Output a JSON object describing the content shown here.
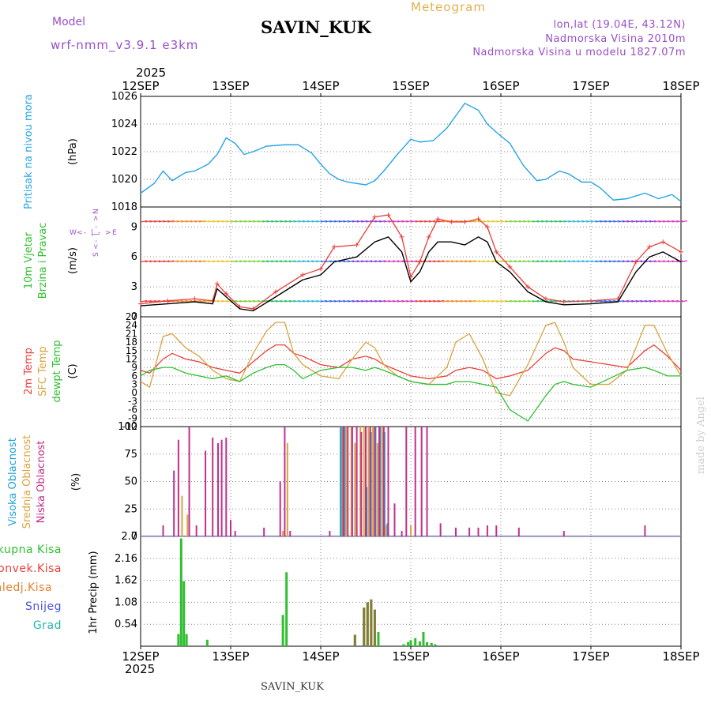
{
  "header": {
    "title": "SAVIN_KUK",
    "model_label": "Model",
    "model_name": "wrf-nmm_v3.9.1  e3km",
    "meteogram_label": "Meteogram",
    "location_lonlat": "lon,lat (19.04E, 43.12N)",
    "altitude": "Nadmorska Visina 2010m",
    "altitude_model": "Nadmorska Visina u modelu 1827.07m",
    "year": "2025",
    "footer_name": "SAVIN_KUK",
    "made_by": "made by Angel"
  },
  "colors": {
    "pressure": "#27a5e3",
    "wind_speed": "#000000",
    "wind_gust": "#e8403a",
    "temp_2m": "#e8403a",
    "temp_sfc": "#d9a441",
    "dewpoint": "#2fbf2f",
    "cloud_high": "#1ea0d8",
    "cloud_mid": "#d9a441",
    "cloud_low": "#c0308a",
    "precip_total": "#2fbf2f",
    "precip_grad": "#20b8a8",
    "precip_conv": "#e8403a",
    "precip_zaledj": "#e87f2a",
    "precip_snow": "#4b55d8",
    "label_pressure": "#27a5e3",
    "label_wind": "#2fbf2f"
  },
  "chart_data": [
    {
      "type": "line",
      "title": "Pritisak na nivou mora",
      "ylabel": "(hPa)",
      "ylim": [
        1018,
        1026
      ],
      "yticks": [
        "1018",
        "1020",
        "1022",
        "1024",
        "1026"
      ],
      "x_labels": [
        "12SEP",
        "13SEP",
        "14SEP",
        "15SEP",
        "16SEP",
        "17SEP",
        "18SEP"
      ],
      "xlim_days": [
        0,
        6
      ],
      "series": [
        {
          "name": "pressure",
          "x": [
            0,
            0.15,
            0.25,
            0.35,
            0.5,
            0.6,
            0.75,
            0.85,
            0.95,
            1.0,
            1.05,
            1.15,
            1.25,
            1.4,
            1.6,
            1.75,
            1.9,
            2.0,
            2.1,
            2.2,
            2.3,
            2.4,
            2.5,
            2.6,
            2.7,
            2.85,
            3.0,
            3.1,
            3.25,
            3.4,
            3.6,
            3.75,
            3.85,
            3.95,
            4.1,
            4.25,
            4.4,
            4.5,
            4.65,
            4.75,
            4.9,
            5.0,
            5.1,
            5.25,
            5.4,
            5.6,
            5.75,
            5.9,
            6.0
          ],
          "values": [
            1019.0,
            1019.7,
            1020.6,
            1019.9,
            1020.5,
            1020.6,
            1021.1,
            1021.8,
            1023.0,
            1022.8,
            1022.6,
            1021.8,
            1022.0,
            1022.4,
            1022.5,
            1022.5,
            1021.9,
            1021.1,
            1020.4,
            1020.0,
            1019.8,
            1019.7,
            1019.6,
            1019.9,
            1020.6,
            1021.8,
            1022.9,
            1022.7,
            1022.8,
            1023.7,
            1025.5,
            1025.0,
            1024.0,
            1023.4,
            1022.6,
            1021.0,
            1019.9,
            1020.0,
            1020.6,
            1020.4,
            1019.8,
            1019.8,
            1019.4,
            1018.5,
            1018.6,
            1019.0,
            1018.6,
            1018.9,
            1018.4
          ]
        }
      ]
    },
    {
      "type": "line",
      "title": "10m Vjetar Brzina i Pravac",
      "ylabel": "(m/s)",
      "ylim": [
        0,
        11
      ],
      "yticks": [
        "0",
        "3",
        "6",
        "9"
      ],
      "compass": [
        "W",
        "<",
        "-",
        "|",
        "-",
        ">",
        "E",
        "S",
        "<",
        "-",
        "|",
        "-",
        ">",
        "N"
      ],
      "series": [
        {
          "name": "wind_speed",
          "x": [
            0,
            0.3,
            0.6,
            0.8,
            0.85,
            0.95,
            1.1,
            1.25,
            1.5,
            1.8,
            2.0,
            2.15,
            2.4,
            2.6,
            2.75,
            2.9,
            3.0,
            3.1,
            3.2,
            3.3,
            3.45,
            3.6,
            3.75,
            3.85,
            3.95,
            4.1,
            4.3,
            4.5,
            4.7,
            5.0,
            5.3,
            5.5,
            5.65,
            5.8,
            6.0
          ],
          "values": [
            1.1,
            1.3,
            1.5,
            1.3,
            2.8,
            2.0,
            0.8,
            0.6,
            2.0,
            3.7,
            4.2,
            5.5,
            6.0,
            7.5,
            8.0,
            6.5,
            3.5,
            4.5,
            6.5,
            7.5,
            7.5,
            7.2,
            8.0,
            7.5,
            5.5,
            4.5,
            2.5,
            1.5,
            1.2,
            1.3,
            1.5,
            4.5,
            6.0,
            6.5,
            5.5
          ]
        },
        {
          "name": "wind_gust",
          "x": [
            0,
            0.3,
            0.6,
            0.8,
            0.85,
            0.95,
            1.1,
            1.25,
            1.5,
            1.8,
            2.0,
            2.15,
            2.4,
            2.6,
            2.75,
            2.9,
            3.0,
            3.1,
            3.2,
            3.3,
            3.45,
            3.6,
            3.75,
            3.85,
            3.95,
            4.1,
            4.3,
            4.5,
            4.7,
            5.0,
            5.3,
            5.5,
            5.65,
            5.8,
            6.0
          ],
          "values": [
            1.3,
            1.6,
            1.8,
            1.6,
            3.3,
            2.3,
            1.0,
            0.8,
            2.5,
            4.2,
            4.8,
            7.0,
            7.2,
            10.0,
            10.2,
            8.0,
            4.0,
            5.5,
            8.0,
            9.8,
            9.5,
            9.5,
            9.8,
            9.0,
            6.5,
            5.0,
            3.0,
            1.8,
            1.5,
            1.6,
            1.8,
            5.5,
            7.0,
            7.5,
            6.5
          ]
        }
      ]
    },
    {
      "type": "line",
      "title": "2m Temp / SFC Temp / dewpt Temp",
      "ylabel": "(C)",
      "ylim": [
        -12,
        27
      ],
      "yticks": [
        "-12",
        "-9",
        "-6",
        "-3",
        "0",
        "3",
        "6",
        "9",
        "12",
        "15",
        "18",
        "21",
        "24",
        "27"
      ],
      "series": [
        {
          "name": "2m Temp",
          "x": [
            0,
            0.1,
            0.25,
            0.35,
            0.5,
            0.65,
            0.8,
            0.95,
            1.1,
            1.25,
            1.4,
            1.5,
            1.6,
            1.7,
            1.8,
            2.0,
            2.2,
            2.35,
            2.5,
            2.6,
            2.7,
            2.85,
            3.0,
            3.2,
            3.4,
            3.5,
            3.65,
            3.8,
            3.95,
            4.1,
            4.3,
            4.5,
            4.6,
            4.7,
            4.8,
            5.0,
            5.2,
            5.4,
            5.6,
            5.7,
            5.85,
            6.0
          ],
          "values": [
            8,
            7,
            12,
            14,
            12,
            11,
            9,
            8,
            7,
            11,
            15,
            17,
            17,
            14,
            13,
            10,
            9,
            12,
            13,
            12,
            10,
            8,
            6,
            5,
            6,
            8,
            9,
            8,
            5,
            6,
            8,
            14,
            16,
            15,
            12,
            11,
            10,
            9,
            15,
            17,
            13,
            8
          ]
        },
        {
          "name": "SFC Temp",
          "x": [
            0,
            0.1,
            0.25,
            0.35,
            0.5,
            0.65,
            0.8,
            0.95,
            1.1,
            1.25,
            1.4,
            1.5,
            1.6,
            1.7,
            1.8,
            2.0,
            2.2,
            2.35,
            2.5,
            2.6,
            2.7,
            2.85,
            3.0,
            3.2,
            3.4,
            3.5,
            3.65,
            3.8,
            3.95,
            4.1,
            4.3,
            4.5,
            4.6,
            4.7,
            4.8,
            5.0,
            5.2,
            5.4,
            5.6,
            5.7,
            5.85,
            6.0
          ],
          "values": [
            4,
            2,
            20,
            21,
            16,
            13,
            8,
            5,
            4,
            14,
            22,
            25,
            25,
            14,
            10,
            6,
            5,
            12,
            18,
            16,
            10,
            6,
            4,
            3,
            9,
            18,
            21,
            12,
            0,
            -1,
            10,
            24,
            25,
            18,
            9,
            3,
            3,
            8,
            24,
            24,
            14,
            6
          ]
        },
        {
          "name": "dewpt Temp",
          "x": [
            0,
            0.1,
            0.25,
            0.35,
            0.5,
            0.65,
            0.8,
            0.95,
            1.1,
            1.25,
            1.4,
            1.5,
            1.6,
            1.7,
            1.8,
            2.0,
            2.2,
            2.35,
            2.5,
            2.6,
            2.7,
            2.85,
            3.0,
            3.2,
            3.4,
            3.5,
            3.65,
            3.8,
            3.95,
            4.1,
            4.3,
            4.5,
            4.6,
            4.7,
            4.8,
            5.0,
            5.2,
            5.4,
            5.6,
            5.7,
            5.85,
            6.0
          ],
          "values": [
            6,
            8,
            9,
            9,
            7,
            6,
            5,
            6,
            4,
            7,
            9,
            10,
            10,
            8,
            5,
            8,
            9,
            9,
            8,
            9,
            8,
            6,
            4,
            3,
            3,
            4,
            4,
            3,
            2,
            -6,
            -10,
            -1,
            3,
            4,
            3,
            2,
            5,
            8,
            9,
            8,
            6,
            6
          ]
        }
      ]
    },
    {
      "type": "bar",
      "title": "Visoka / Srednja / Niska Oblacnost",
      "ylabel": "(%)",
      "ylim": [
        0,
        100
      ],
      "yticks": [
        "0",
        "25",
        "50",
        "75",
        "100"
      ],
      "series": [
        {
          "name": "Niska Oblacnost",
          "x": [
            0.25,
            0.37,
            0.42,
            0.54,
            0.62,
            0.72,
            0.8,
            0.86,
            0.9,
            0.95,
            1.0,
            1.05,
            1.37,
            1.55,
            1.6,
            1.66,
            2.1,
            2.25,
            2.3,
            2.35,
            2.4,
            2.45,
            2.5,
            2.55,
            2.6,
            2.65,
            2.7,
            2.75,
            2.82,
            2.9,
            2.95,
            3.05,
            3.12,
            3.18,
            3.33,
            3.5,
            3.65,
            3.75,
            3.85,
            3.95,
            4.2,
            4.7,
            5.6
          ],
          "values": [
            10,
            60,
            88,
            100,
            10,
            78,
            90,
            85,
            88,
            90,
            15,
            5,
            8,
            50,
            100,
            5,
            5,
            100,
            100,
            100,
            100,
            95,
            100,
            100,
            100,
            100,
            100,
            100,
            30,
            5,
            100,
            100,
            100,
            100,
            12,
            8,
            8,
            8,
            10,
            10,
            8,
            5,
            10
          ]
        },
        {
          "name": "Srednja Oblacnost",
          "x": [
            0.46,
            0.52,
            1.58,
            1.63,
            2.24,
            2.28,
            2.34,
            2.38,
            2.44,
            2.48,
            2.53,
            2.58,
            2.63,
            2.68,
            2.72,
            3.0
          ],
          "values": [
            37,
            20,
            5,
            85,
            100,
            100,
            100,
            85,
            100,
            100,
            100,
            100,
            85,
            100,
            10,
            10
          ]
        },
        {
          "name": "Visoka Oblacnost",
          "x": [
            2.22,
            2.26,
            2.5,
            2.55,
            2.6,
            2.65,
            2.7,
            2.74
          ],
          "values": [
            100,
            100,
            45,
            95,
            100,
            100,
            95,
            12
          ]
        }
      ]
    },
    {
      "type": "bar",
      "title": "1hr Precip",
      "ylabel": "1hr Precip (mm)",
      "ylim": [
        0,
        2.7
      ],
      "yticks": [
        "0.54",
        "1.08",
        "1.62",
        "2.16",
        "2.7"
      ],
      "legend": [
        "Ukupna Kisa",
        "Konvek.Kisa",
        "Zaledj.Kisa",
        "Snijeg",
        "Grad"
      ],
      "series": [
        {
          "name": "Ukupna Kisa",
          "x": [
            0.42,
            0.45,
            0.48,
            0.51,
            0.74,
            1.58,
            1.62,
            2.38,
            2.48,
            2.52,
            2.56,
            2.6,
            2.64,
            2.92,
            2.97,
            3.0,
            3.05,
            3.1,
            3.14,
            3.18,
            3.23,
            3.27
          ],
          "values": [
            0.3,
            2.65,
            1.6,
            0.3,
            0.16,
            0.77,
            1.82,
            0.28,
            0.95,
            1.08,
            1.15,
            0.9,
            0.35,
            0.05,
            0.1,
            0.15,
            0.2,
            0.12,
            0.35,
            0.1,
            0.08,
            0.05
          ]
        },
        {
          "name": "Konvek.Kisa",
          "x": [
            2.38,
            2.48,
            2.52,
            2.56,
            2.6
          ],
          "values": [
            0.28,
            0.95,
            1.08,
            1.15,
            0.9
          ]
        }
      ]
    }
  ]
}
